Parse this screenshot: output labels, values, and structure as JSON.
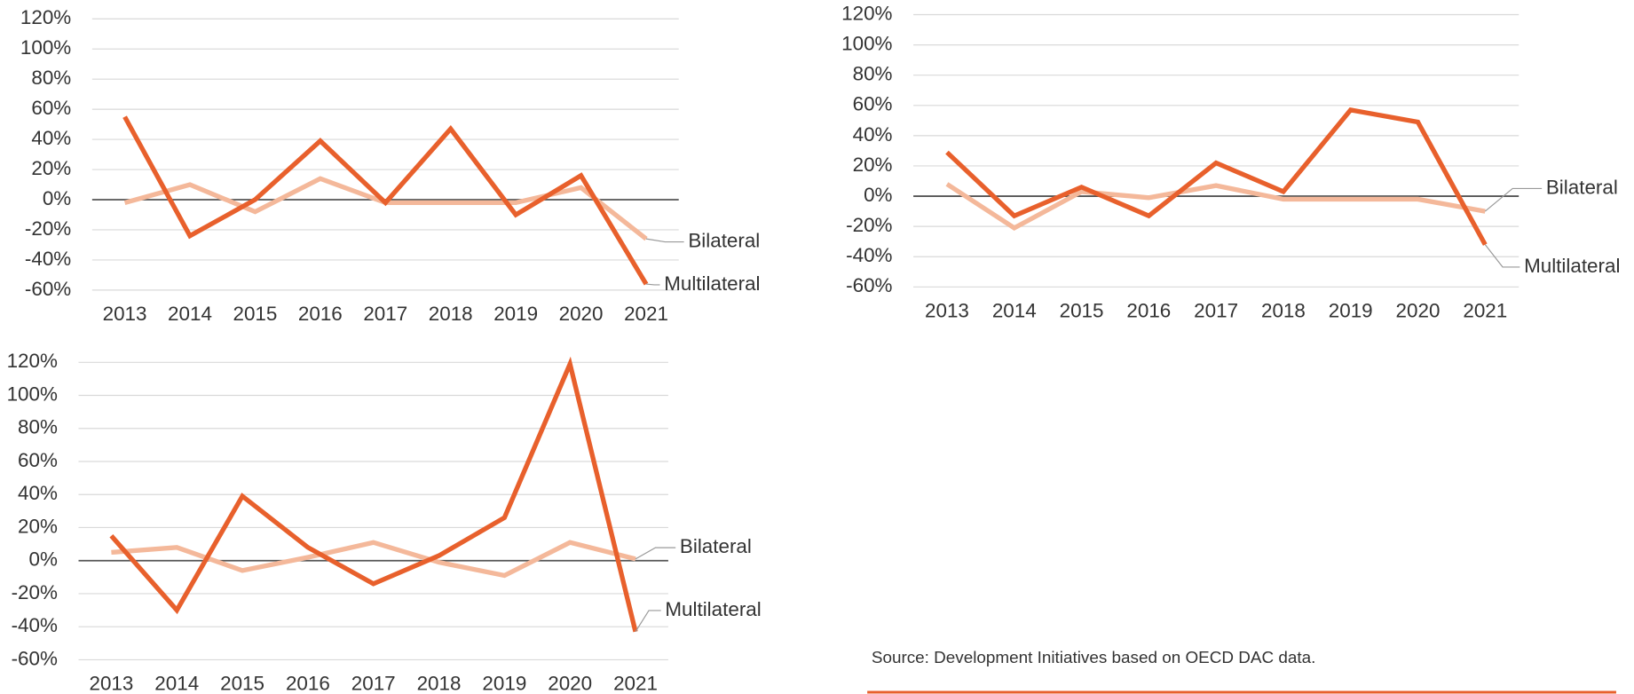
{
  "chart_data": [
    {
      "type": "line",
      "categories": [
        "2013",
        "2014",
        "2015",
        "2016",
        "2017",
        "2018",
        "2019",
        "2020",
        "2021"
      ],
      "series": [
        {
          "name": "Bilateral",
          "color": "#f4b89a",
          "values": [
            -2,
            10,
            -8,
            14,
            -2,
            -2,
            -2,
            8,
            -26
          ]
        },
        {
          "name": "Multilateral",
          "color": "#e8602c",
          "values": [
            55,
            -24,
            0,
            39,
            -2,
            47,
            -10,
            16,
            -56
          ]
        }
      ],
      "ylim": [
        -60,
        120
      ],
      "yticks": [
        {
          "value": -60,
          "label": "-60%"
        },
        {
          "value": -40,
          "label": "-40%"
        },
        {
          "value": -20,
          "label": "-20%"
        },
        {
          "value": 0,
          "label": "0%"
        },
        {
          "value": 20,
          "label": "20%"
        },
        {
          "value": 40,
          "label": "40%"
        },
        {
          "value": 60,
          "label": "60%"
        },
        {
          "value": 80,
          "label": "80%"
        },
        {
          "value": 100,
          "label": "100%"
        },
        {
          "value": 120,
          "label": "120%"
        }
      ],
      "grid": true
    },
    {
      "type": "line",
      "categories": [
        "2013",
        "2014",
        "2015",
        "2016",
        "2017",
        "2018",
        "2019",
        "2020",
        "2021"
      ],
      "series": [
        {
          "name": "Bilateral",
          "color": "#f4b89a",
          "values": [
            8,
            -21,
            3,
            -1,
            7,
            -2,
            -2,
            -2,
            -10
          ]
        },
        {
          "name": "Multilateral",
          "color": "#e8602c",
          "values": [
            29,
            -13,
            6,
            -13,
            22,
            3,
            57,
            49,
            -32
          ]
        }
      ],
      "ylim": [
        -60,
        120
      ],
      "yticks": [
        {
          "value": -60,
          "label": "-60%"
        },
        {
          "value": -40,
          "label": "-40%"
        },
        {
          "value": -20,
          "label": "-20%"
        },
        {
          "value": 0,
          "label": "0%"
        },
        {
          "value": 20,
          "label": "20%"
        },
        {
          "value": 40,
          "label": "40%"
        },
        {
          "value": 60,
          "label": "60%"
        },
        {
          "value": 80,
          "label": "80%"
        },
        {
          "value": 100,
          "label": "100%"
        },
        {
          "value": 120,
          "label": "120%"
        }
      ],
      "grid": true
    },
    {
      "type": "line",
      "categories": [
        "2013",
        "2014",
        "2015",
        "2016",
        "2017",
        "2018",
        "2019",
        "2020",
        "2021"
      ],
      "series": [
        {
          "name": "Bilateral",
          "color": "#f4b89a",
          "values": [
            5,
            8,
            -6,
            2,
            11,
            -1,
            -9,
            11,
            1
          ]
        },
        {
          "name": "Multilateral",
          "color": "#e8602c",
          "values": [
            15,
            -30,
            39,
            8,
            -14,
            3,
            26,
            119,
            -43
          ]
        }
      ],
      "ylim": [
        -60,
        120
      ],
      "yticks": [
        {
          "value": -60,
          "label": "-60%"
        },
        {
          "value": -40,
          "label": "-40%"
        },
        {
          "value": -20,
          "label": "-20%"
        },
        {
          "value": 0,
          "label": "0%"
        },
        {
          "value": 20,
          "label": "20%"
        },
        {
          "value": 40,
          "label": "40%"
        },
        {
          "value": 60,
          "label": "60%"
        },
        {
          "value": 80,
          "label": "80%"
        },
        {
          "value": 100,
          "label": "100%"
        },
        {
          "value": 120,
          "label": "120%"
        }
      ],
      "grid": true
    }
  ],
  "source": "Source: Development Initiatives based on OECD DAC data."
}
